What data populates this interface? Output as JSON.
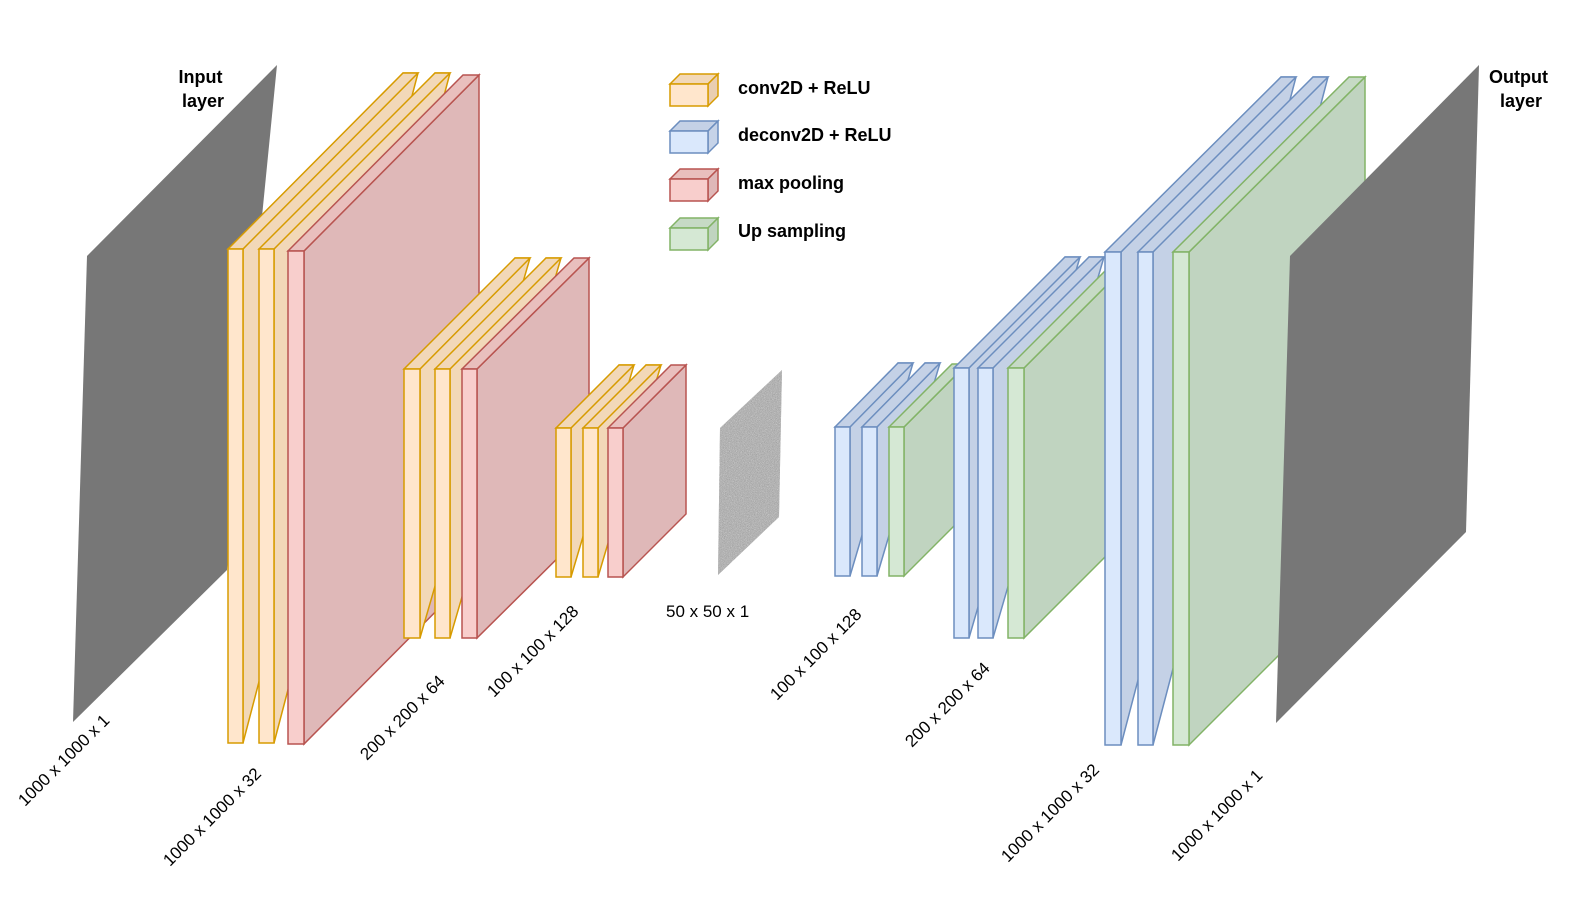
{
  "input_layer": {
    "title_line1": "Input",
    "title_line2": "layer",
    "dims": "1000 x 1000 x 1"
  },
  "output_layer": {
    "title_line1": "Output",
    "title_line2": "layer",
    "dims": "1000 x 1000 x 1"
  },
  "bottleneck": {
    "dims": "50 x 50 x 1"
  },
  "legend": [
    {
      "label": "conv2D + ReLU",
      "type": "conv"
    },
    {
      "label": "deconv2D + ReLU",
      "type": "deconv"
    },
    {
      "label": "max pooling",
      "type": "pool"
    },
    {
      "label": "Up sampling",
      "type": "up"
    }
  ],
  "encoder_blocks": [
    {
      "dims": "1000 x 1000 x 32"
    },
    {
      "dims": "200 x 200 x 64"
    },
    {
      "dims": "100 x 100 x 128"
    }
  ],
  "decoder_blocks": [
    {
      "dims": "100 x 100 x 128"
    },
    {
      "dims": "200 x 200 x 64"
    },
    {
      "dims": "1000 x 1000 x 32"
    }
  ],
  "colors": {
    "conv": {
      "front": "#ffe6cc",
      "side": "#f2d8b8",
      "big": "#e9ceb1",
      "stroke": "#d79b00"
    },
    "deconv": {
      "front": "#dae8fc",
      "side": "#c4d1e6",
      "big": "#c6d3e8",
      "stroke": "#6c8ebf"
    },
    "pool": {
      "front": "#f8cecc",
      "side": "#e9bfbd",
      "big": "#dfb8b8",
      "stroke": "#b85450"
    },
    "up": {
      "front": "#d5e8d4",
      "side": "#c6dac5",
      "big": "#c0d4c0",
      "stroke": "#82b366"
    },
    "io": "#777777"
  }
}
